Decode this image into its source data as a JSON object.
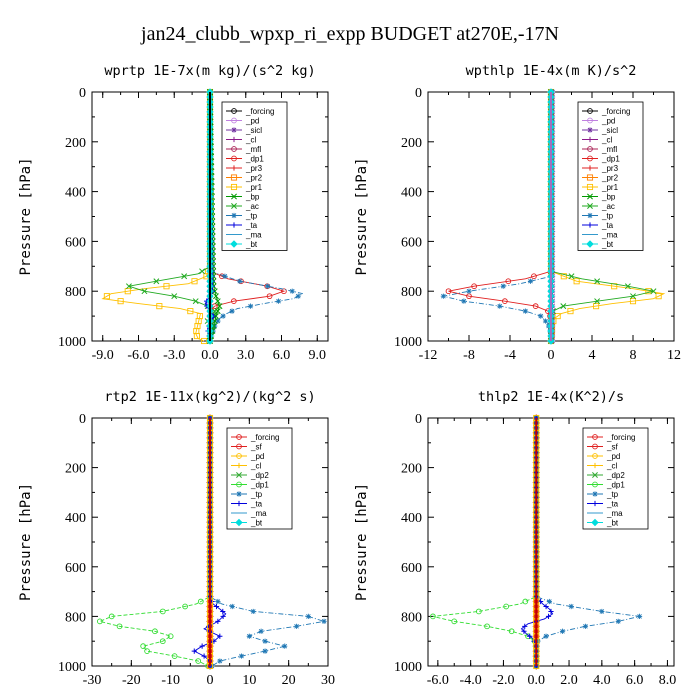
{
  "figure_title": "jan24_clubb_wpxp_ri_expp  BUDGET at270E,-17N",
  "chart_data": [
    {
      "type": "line",
      "title": "wprtp  1E-7x(m kg)/(s^2 kg)",
      "ylabel": "Pressure [hPa]",
      "xlim": [
        -9.9,
        9.9
      ],
      "ylim": [
        1000,
        0
      ],
      "x_ticks": [
        "-9.0",
        "-6.0",
        "-3.0",
        "0.0",
        "3.0",
        "6.0",
        "9.0"
      ],
      "x_tick_values": [
        -9,
        -6,
        -3,
        0,
        3,
        6,
        9
      ],
      "y_ticks": [
        "0",
        "200",
        "400",
        "600",
        "800",
        "1000"
      ],
      "y_tick_values": [
        0,
        200,
        400,
        600,
        800,
        1000
      ],
      "legend": [
        "_forcing",
        "_pd",
        "_sicl",
        "_cl",
        "_mfl",
        "_dp1",
        "_pr3",
        "_pr2",
        "_pr1",
        "_bp",
        "_ac",
        "_tp",
        "_ta",
        "_ma",
        "_bt"
      ],
      "series": [
        {
          "name": "_forcing",
          "color": "#000000",
          "marker": "circle",
          "p": [
            0,
            200,
            400,
            600,
            700,
            800,
            900,
            1000
          ],
          "x": [
            0,
            0,
            0,
            0,
            0,
            0,
            0,
            0
          ]
        },
        {
          "name": "_pr1",
          "color": "#ffc000",
          "marker": "square",
          "p": [
            0,
            700,
            740,
            770,
            790,
            810,
            830,
            850,
            870,
            890,
            910,
            930,
            950,
            970,
            990,
            1000
          ],
          "x": [
            0,
            0,
            -0.3,
            -1.8,
            -5.5,
            -8.3,
            -9.0,
            -6.0,
            -2.5,
            -0.8,
            -0.9,
            -1.0,
            -1.1,
            -1.2,
            -1.0,
            -0.5
          ]
        },
        {
          "name": "_ac",
          "color": "#22aa22",
          "marker": "cross",
          "p": [
            0,
            700,
            730,
            760,
            780,
            800,
            820,
            840,
            860,
            880,
            900,
            920,
            950,
            980,
            1000
          ],
          "x": [
            0,
            0,
            -1.0,
            -4.5,
            -6.8,
            -5.5,
            -3.0,
            -1.2,
            -0.2,
            0.4,
            0.3,
            -0.2,
            0.2,
            0,
            0
          ]
        },
        {
          "name": "_dp1",
          "color": "#e02020",
          "marker": "circle",
          "p": [
            0,
            720,
            750,
            780,
            800,
            820,
            840,
            860,
            880,
            900,
            930,
            960,
            1000
          ],
          "x": [
            0,
            0,
            1.5,
            4.8,
            6.2,
            5.0,
            2.0,
            0.4,
            0,
            0,
            0,
            0,
            0
          ]
        },
        {
          "name": "_tp",
          "color": "#1f77b4",
          "marker": "star",
          "p": [
            0,
            720,
            760,
            790,
            810,
            830,
            850,
            870,
            890,
            910,
            940,
            970,
            1000
          ],
          "x": [
            0,
            0,
            2.5,
            6.0,
            7.8,
            7.0,
            4.5,
            2.3,
            1.4,
            0.8,
            0.4,
            0.2,
            0
          ]
        },
        {
          "name": "_pd",
          "color": "#c080e0",
          "marker": "circle",
          "p": [
            0,
            1000
          ],
          "x": [
            0,
            0
          ]
        },
        {
          "name": "_bp",
          "color": "#009900",
          "marker": "cross",
          "p": [
            0,
            780,
            820,
            860,
            900,
            940,
            980,
            1000
          ],
          "x": [
            0,
            0.3,
            0.5,
            0.8,
            0.5,
            0.3,
            0.1,
            0
          ]
        },
        {
          "name": "_ta",
          "color": "#0000dd",
          "marker": "plus",
          "p": [
            0,
            800,
            850,
            900,
            950,
            1000
          ],
          "x": [
            0,
            0.2,
            -0.4,
            0.3,
            -0.2,
            0
          ]
        },
        {
          "name": "_ma",
          "color": "#3399cc",
          "marker": "none",
          "p": [
            0,
            1000
          ],
          "x": [
            0,
            0
          ]
        },
        {
          "name": "_bt",
          "color": "#00dddd",
          "marker": "diamond",
          "p": [
            0,
            1000
          ],
          "x": [
            0,
            0
          ]
        }
      ]
    },
    {
      "type": "line",
      "title": "wpthlp  1E-4x(m K)/s^2",
      "ylabel": "Pressure [hPa]",
      "xlim": [
        -12,
        12
      ],
      "ylim": [
        1000,
        0
      ],
      "x_ticks": [
        "-12",
        "-8",
        "-4",
        "0",
        "4",
        "8",
        "12"
      ],
      "x_tick_values": [
        -12,
        -8,
        -4,
        0,
        4,
        8,
        12
      ],
      "y_ticks": [
        "0",
        "200",
        "400",
        "600",
        "800",
        "1000"
      ],
      "y_tick_values": [
        0,
        200,
        400,
        600,
        800,
        1000
      ],
      "legend": [
        "_forcing",
        "_pd",
        "_sicl",
        "_cl",
        "_mfl",
        "_dp1",
        "_pr3",
        "_pr2",
        "_pr1",
        "_bp",
        "_ac",
        "_tp",
        "_ta",
        "_ma",
        "_bt"
      ],
      "series": [
        {
          "name": "_forcing",
          "color": "#000000",
          "marker": "circle",
          "p": [
            0,
            1000
          ],
          "x": [
            0,
            0
          ]
        },
        {
          "name": "_pr1",
          "color": "#ffc000",
          "marker": "square",
          "p": [
            0,
            720,
            760,
            790,
            810,
            830,
            850,
            870,
            890,
            910,
            940,
            970,
            1000
          ],
          "x": [
            0,
            0,
            2.5,
            8.0,
            11.0,
            10.0,
            6.0,
            2.8,
            1.0,
            0.3,
            0.1,
            0.1,
            0
          ]
        },
        {
          "name": "_ac",
          "color": "#22aa22",
          "marker": "cross",
          "p": [
            0,
            720,
            750,
            780,
            800,
            820,
            840,
            860,
            880,
            910,
            940,
            980,
            1000
          ],
          "x": [
            0,
            0,
            3.0,
            7.5,
            10.0,
            8.0,
            4.5,
            1.2,
            0.2,
            0,
            0,
            0,
            0
          ]
        },
        {
          "name": "_dp1",
          "color": "#e02020",
          "marker": "circle",
          "p": [
            0,
            720,
            750,
            780,
            800,
            820,
            840,
            860,
            880,
            910,
            940,
            980,
            1000
          ],
          "x": [
            0,
            0,
            -2.5,
            -7.5,
            -10.0,
            -8.0,
            -4.5,
            -1.5,
            -0.3,
            0,
            0,
            0,
            0
          ]
        },
        {
          "name": "_tp",
          "color": "#1f77b4",
          "marker": "star",
          "p": [
            0,
            740,
            770,
            800,
            820,
            840,
            860,
            880,
            900,
            930,
            960,
            990,
            1000
          ],
          "x": [
            0,
            0,
            -3.0,
            -8.0,
            -10.5,
            -8.5,
            -5.0,
            -2.5,
            -1.0,
            -0.3,
            -0.1,
            0,
            0
          ]
        },
        {
          "name": "_pd",
          "color": "#c080e0",
          "marker": "circle",
          "p": [
            0,
            1000
          ],
          "x": [
            0,
            0
          ]
        },
        {
          "name": "_sicl",
          "color": "#7030a0",
          "marker": "star",
          "p": [
            0,
            1000
          ],
          "x": [
            0.15,
            0.15
          ]
        },
        {
          "name": "_ta",
          "color": "#0000dd",
          "marker": "plus",
          "p": [
            0,
            1000
          ],
          "x": [
            0,
            0
          ]
        },
        {
          "name": "_bt",
          "color": "#00dddd",
          "marker": "diamond",
          "p": [
            0,
            1000
          ],
          "x": [
            0,
            0
          ]
        }
      ]
    },
    {
      "type": "line",
      "title": "rtp2  1E-11x(kg^2)/(kg^2 s)",
      "ylabel": "Pressure [hPa]",
      "xlim": [
        -30,
        30
      ],
      "ylim": [
        1000,
        0
      ],
      "x_ticks": [
        "-30",
        "-20",
        "-10",
        "0",
        "10",
        "20",
        "30"
      ],
      "x_tick_values": [
        -30,
        -20,
        -10,
        0,
        10,
        20,
        30
      ],
      "y_ticks": [
        "0",
        "200",
        "400",
        "600",
        "800",
        "1000"
      ],
      "y_tick_values": [
        0,
        200,
        400,
        600,
        800,
        1000
      ],
      "legend": [
        "_forcing",
        "_sf",
        "_pd",
        "_cl",
        "_dp2",
        "_dp1",
        "_tp",
        "_ta",
        "_ma",
        "_bt"
      ],
      "series": [
        {
          "name": "_forcing",
          "color": "#e02020",
          "marker": "diamond",
          "p": [
            0,
            1000
          ],
          "x": [
            0,
            0
          ]
        },
        {
          "name": "_sf",
          "color": "#e02020",
          "marker": "circle",
          "p": [
            0,
            1000
          ],
          "x": [
            0,
            0
          ]
        },
        {
          "name": "_dp1",
          "color": "#33dd33",
          "marker": "circle",
          "p": [
            0,
            720,
            750,
            780,
            800,
            820,
            840,
            860,
            880,
            900,
            920,
            940,
            960,
            980,
            1000
          ],
          "x": [
            0,
            0,
            -3.5,
            -12.0,
            -25.0,
            -28.0,
            -23.0,
            -14.0,
            -10.0,
            -12.0,
            -17.0,
            -16.0,
            -9.0,
            -3.0,
            -0.5
          ]
        },
        {
          "name": "_tp",
          "color": "#1f77b4",
          "marker": "star",
          "p": [
            0,
            720,
            750,
            780,
            800,
            820,
            840,
            860,
            880,
            900,
            920,
            940,
            960,
            980,
            1000
          ],
          "x": [
            0,
            0,
            3.0,
            11.0,
            25.0,
            29.0,
            22.0,
            13.0,
            10.0,
            14.0,
            19.0,
            14.0,
            8.0,
            2.5,
            0.5
          ]
        },
        {
          "name": "_ta",
          "color": "#0000dd",
          "marker": "plus",
          "p": [
            0,
            720,
            750,
            770,
            790,
            820,
            850,
            880,
            900,
            920,
            940,
            960,
            980,
            1000
          ],
          "x": [
            0,
            0,
            0.8,
            2.5,
            4.0,
            2.0,
            -1.5,
            2.5,
            1.0,
            -2.0,
            -4.0,
            -1.5,
            0,
            0
          ]
        },
        {
          "name": "_pd",
          "color": "#ffc000",
          "marker": "square",
          "p": [
            0,
            1000
          ],
          "x": [
            0,
            0
          ]
        }
      ]
    },
    {
      "type": "line",
      "title": "thlp2  1E-4x(K^2)/s",
      "ylabel": "Pressure [hPa]",
      "xlim": [
        -6.6,
        8.4
      ],
      "ylim": [
        1000,
        0
      ],
      "x_ticks": [
        "-6.0",
        "-4.0",
        "-2.0",
        "0.0",
        "2.0",
        "4.0",
        "6.0",
        "8.0"
      ],
      "x_tick_values": [
        -6,
        -4,
        -2,
        0,
        2,
        4,
        6,
        8
      ],
      "y_ticks": [
        "0",
        "200",
        "400",
        "600",
        "800",
        "1000"
      ],
      "y_tick_values": [
        0,
        200,
        400,
        600,
        800,
        1000
      ],
      "legend": [
        "_forcing",
        "_sf",
        "_pd",
        "_cl",
        "_dp2",
        "_dp1",
        "_tp",
        "_ta",
        "_ma",
        "_bt"
      ],
      "series": [
        {
          "name": "_forcing",
          "color": "#e02020",
          "marker": "diamond",
          "p": [
            0,
            1000
          ],
          "x": [
            0,
            0
          ]
        },
        {
          "name": "_sf",
          "color": "#e02020",
          "marker": "circle",
          "p": [
            0,
            1000
          ],
          "x": [
            0,
            0
          ]
        },
        {
          "name": "_dp1",
          "color": "#33dd33",
          "marker": "circle",
          "p": [
            0,
            720,
            750,
            780,
            800,
            820,
            840,
            860,
            880,
            900,
            930,
            960,
            1000
          ],
          "x": [
            0,
            0,
            -1.0,
            -3.5,
            -6.3,
            -5.0,
            -3.0,
            -1.5,
            -0.5,
            -0.1,
            0,
            0,
            0
          ]
        },
        {
          "name": "_tp",
          "color": "#1f77b4",
          "marker": "star",
          "p": [
            0,
            720,
            750,
            780,
            800,
            820,
            840,
            860,
            880,
            900,
            930,
            960,
            1000
          ],
          "x": [
            0,
            0,
            1.2,
            4.0,
            6.3,
            5.0,
            3.0,
            1.6,
            0.6,
            0.1,
            0,
            0,
            0
          ]
        },
        {
          "name": "_ta",
          "color": "#0000dd",
          "marker": "plus",
          "p": [
            0,
            720,
            750,
            770,
            790,
            810,
            830,
            850,
            870,
            890,
            920,
            960,
            1000
          ],
          "x": [
            0,
            0,
            0.4,
            0.8,
            1.0,
            0.5,
            -0.5,
            -0.9,
            -0.6,
            -0.2,
            0,
            0,
            0
          ]
        },
        {
          "name": "_pd",
          "color": "#ffc000",
          "marker": "square",
          "p": [
            0,
            1000
          ],
          "x": [
            0,
            0
          ]
        }
      ]
    }
  ],
  "legend_colors": {
    "_forcing": "#000000",
    "_pd": "#c080e0",
    "_sicl": "#7030a0",
    "_cl": "#8b1a8b",
    "_mfl": "#aa2255",
    "_dp1": "#e02020",
    "_pr3": "#e02020",
    "_pr2": "#ff8000",
    "_pr1": "#ffc000",
    "_bp": "#009900",
    "_ac": "#22aa22",
    "_tp": "#1f77b4",
    "_ta": "#0000dd",
    "_ma": "#3399cc",
    "_bt": "#00dddd",
    "_sf": "#e02020",
    "_dp2": "#33aa33"
  },
  "legend_colors_var": {
    "_forcing": "#e02020",
    "_pd": "#ffc000",
    "_cl": "#ffc000",
    "_dp2": "#33aa33",
    "_dp1": "#33dd33",
    "_tp": "#1f77b4",
    "_ta": "#0000dd",
    "_ma": "#3399cc",
    "_bt": "#00dddd",
    "_sf": "#e02020"
  }
}
